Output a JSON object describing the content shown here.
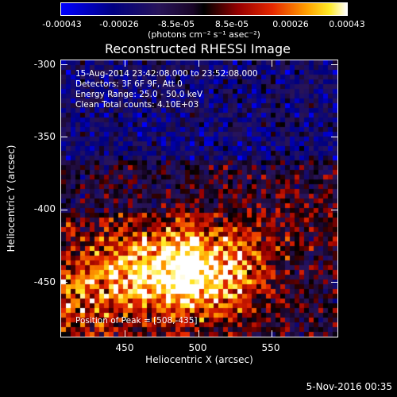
{
  "colorbar": {
    "ticks": [
      "-0.00043",
      "-0.00026",
      "-8.5e-05",
      "8.5e-05",
      "0.00026",
      "0.00043"
    ],
    "unit": "(photons cm⁻² s⁻¹ asec⁻²)",
    "min": -0.00043,
    "max": 0.00043,
    "colormap": "blue-black-red-yellow-white"
  },
  "header": {
    "title": "Reconstructed RHESSI Image"
  },
  "annotations": {
    "time_range": "15-Aug-2014 23:42:08.000 to 23:52:08.000",
    "detectors": "Detectors: 3F 6F 9F, Att 0",
    "energy": "Energy Range: 25.0 - 50.0 keV",
    "clean": "Clean     Total counts: 4.10E+03",
    "peak": "Position of Peak = [508,-435]"
  },
  "footer": {
    "date": "5-Nov-2016 00:35"
  },
  "chart_data": {
    "type": "heatmap",
    "title": "Reconstructed RHESSI Image",
    "xlabel": "Heliocentric X (arcsec)",
    "ylabel": "Heliocentric Y (arcsec)",
    "xlim": [
      405,
      595
    ],
    "ylim": [
      -490,
      -298
    ],
    "xticks": [
      "450",
      "500",
      "550"
    ],
    "yticks": [
      "-300",
      "-350",
      "-400",
      "-450"
    ],
    "grid": false,
    "peak_position": [
      508,
      -435
    ],
    "bright_region": "lower half, peak near (508,-435) arcsec"
  }
}
